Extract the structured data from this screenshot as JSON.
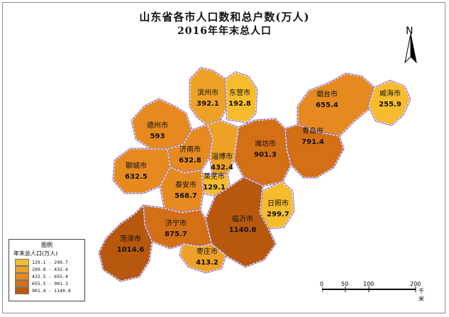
{
  "title": "山东省各市人口数和总户数(万人)",
  "subtitle": "2016年年末总人口",
  "north_label": "N",
  "legend": {
    "title": "图例",
    "subtitle": "年末总人口(万人)",
    "classes": [
      {
        "range": "129.1 - 299.7",
        "color": "#f6bc2e"
      },
      {
        "range": "299.8 - 432.4",
        "color": "#eea127"
      },
      {
        "range": "432.5 - 655.4",
        "color": "#e68a1f"
      },
      {
        "range": "655.5 - 901.3",
        "color": "#d36f14"
      },
      {
        "range": "901.4 - 1140.8",
        "color": "#b8580c"
      }
    ]
  },
  "scale_bar": {
    "ticks": [
      "0",
      "50",
      "100",
      "200"
    ],
    "unit": "千米"
  },
  "cities": [
    {
      "name": "滨州市",
      "value": "392.1",
      "class": 1
    },
    {
      "name": "东营市",
      "value": "192.8",
      "class": 0
    },
    {
      "name": "烟台市",
      "value": "655.4",
      "class": 2
    },
    {
      "name": "威海市",
      "value": "255.9",
      "class": 0
    },
    {
      "name": "德州市",
      "value": "593",
      "class": 2
    },
    {
      "name": "青岛市",
      "value": "791.4",
      "class": 3
    },
    {
      "name": "潍坊市",
      "value": "901.3",
      "class": 3
    },
    {
      "name": "济南市",
      "value": "632.8",
      "class": 2
    },
    {
      "name": "淄博市",
      "value": "432.4",
      "class": 1
    },
    {
      "name": "聊城市",
      "value": "632.5",
      "class": 2
    },
    {
      "name": "莱芜市",
      "value": "129.1",
      "class": 0
    },
    {
      "name": "泰安市",
      "value": "568.7",
      "class": 2
    },
    {
      "name": "日照市",
      "value": "299.7",
      "class": 0
    },
    {
      "name": "临沂市",
      "value": "1140.8",
      "class": 4
    },
    {
      "name": "济宁市",
      "value": "875.7",
      "class": 3
    },
    {
      "name": "菏泽市",
      "value": "1014.6",
      "class": 4
    },
    {
      "name": "枣庄市",
      "value": "413.2",
      "class": 1
    }
  ]
}
